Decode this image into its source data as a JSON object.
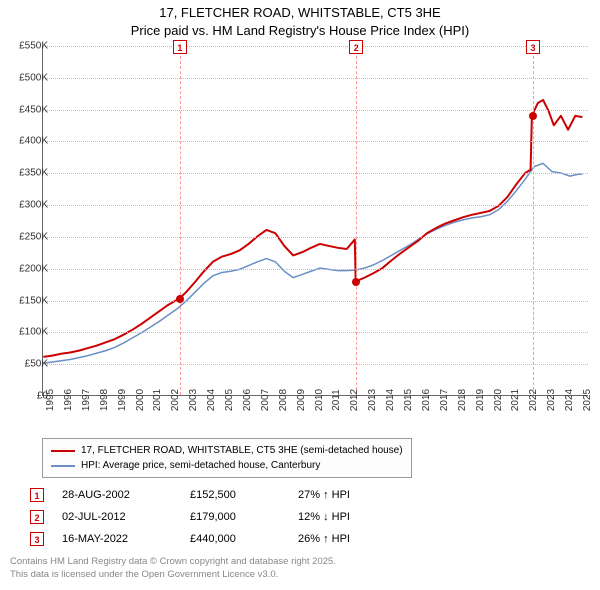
{
  "title": {
    "line1": "17, FLETCHER ROAD, WHITSTABLE, CT5 3HE",
    "line2": "Price paid vs. HM Land Registry's House Price Index (HPI)"
  },
  "chart": {
    "type": "line",
    "background_color": "#ffffff",
    "grid_color": "#bbbbbb",
    "axis_color": "#666666",
    "x": {
      "min": 1995,
      "max": 2025.5,
      "tick_step": 1,
      "labels_every": 1
    },
    "y": {
      "min": 0,
      "max": 550000,
      "tick_step": 50000,
      "labels": [
        "£0",
        "£50K",
        "£100K",
        "£150K",
        "£200K",
        "£250K",
        "£300K",
        "£350K",
        "£400K",
        "£450K",
        "£500K",
        "£550K"
      ]
    },
    "series": [
      {
        "name": "17, FLETCHER ROAD, WHITSTABLE, CT5 3HE (semi-detached house)",
        "color": "#cc0000",
        "line_width": 2,
        "data": [
          [
            1995.0,
            60000
          ],
          [
            1995.5,
            62000
          ],
          [
            1996.0,
            65000
          ],
          [
            1996.5,
            67000
          ],
          [
            1997.0,
            70000
          ],
          [
            1997.5,
            74000
          ],
          [
            1998.0,
            78000
          ],
          [
            1998.5,
            83000
          ],
          [
            1999.0,
            88000
          ],
          [
            1999.5,
            95000
          ],
          [
            2000.0,
            103000
          ],
          [
            2000.5,
            112000
          ],
          [
            2001.0,
            122000
          ],
          [
            2001.5,
            132000
          ],
          [
            2002.0,
            142000
          ],
          [
            2002.65,
            152500
          ],
          [
            2003.0,
            162000
          ],
          [
            2003.5,
            178000
          ],
          [
            2004.0,
            195000
          ],
          [
            2004.5,
            210000
          ],
          [
            2005.0,
            218000
          ],
          [
            2005.5,
            222000
          ],
          [
            2006.0,
            228000
          ],
          [
            2006.5,
            238000
          ],
          [
            2007.0,
            250000
          ],
          [
            2007.5,
            260000
          ],
          [
            2008.0,
            255000
          ],
          [
            2008.5,
            235000
          ],
          [
            2009.0,
            220000
          ],
          [
            2009.5,
            225000
          ],
          [
            2010.0,
            232000
          ],
          [
            2010.5,
            238000
          ],
          [
            2011.0,
            235000
          ],
          [
            2011.5,
            232000
          ],
          [
            2012.0,
            230000
          ],
          [
            2012.45,
            245000
          ],
          [
            2012.5,
            179000
          ],
          [
            2013.0,
            185000
          ],
          [
            2013.5,
            192000
          ],
          [
            2014.0,
            200000
          ],
          [
            2014.5,
            212000
          ],
          [
            2015.0,
            223000
          ],
          [
            2015.5,
            233000
          ],
          [
            2016.0,
            243000
          ],
          [
            2016.5,
            255000
          ],
          [
            2017.0,
            263000
          ],
          [
            2017.5,
            270000
          ],
          [
            2018.0,
            275000
          ],
          [
            2018.5,
            280000
          ],
          [
            2019.0,
            284000
          ],
          [
            2019.5,
            287000
          ],
          [
            2020.0,
            290000
          ],
          [
            2020.5,
            298000
          ],
          [
            2021.0,
            312000
          ],
          [
            2021.5,
            332000
          ],
          [
            2022.0,
            350000
          ],
          [
            2022.3,
            355000
          ],
          [
            2022.37,
            440000
          ],
          [
            2022.7,
            460000
          ],
          [
            2023.0,
            465000
          ],
          [
            2023.3,
            448000
          ],
          [
            2023.6,
            425000
          ],
          [
            2024.0,
            440000
          ],
          [
            2024.4,
            418000
          ],
          [
            2024.8,
            440000
          ],
          [
            2025.2,
            438000
          ]
        ]
      },
      {
        "name": "HPI: Average price, semi-detached house, Canterbury",
        "color": "#6a8fc5",
        "line_width": 1.5,
        "data": [
          [
            1995.0,
            50000
          ],
          [
            1995.5,
            52000
          ],
          [
            1996.0,
            54000
          ],
          [
            1996.5,
            56000
          ],
          [
            1997.0,
            59000
          ],
          [
            1997.5,
            62000
          ],
          [
            1998.0,
            66000
          ],
          [
            1998.5,
            70000
          ],
          [
            1999.0,
            75000
          ],
          [
            1999.5,
            82000
          ],
          [
            2000.0,
            90000
          ],
          [
            2000.5,
            98000
          ],
          [
            2001.0,
            107000
          ],
          [
            2001.5,
            116000
          ],
          [
            2002.0,
            126000
          ],
          [
            2002.5,
            136000
          ],
          [
            2003.0,
            148000
          ],
          [
            2003.5,
            162000
          ],
          [
            2004.0,
            176000
          ],
          [
            2004.5,
            188000
          ],
          [
            2005.0,
            193000
          ],
          [
            2005.5,
            195000
          ],
          [
            2006.0,
            198000
          ],
          [
            2006.5,
            204000
          ],
          [
            2007.0,
            210000
          ],
          [
            2007.5,
            215000
          ],
          [
            2008.0,
            210000
          ],
          [
            2008.5,
            195000
          ],
          [
            2009.0,
            185000
          ],
          [
            2009.5,
            190000
          ],
          [
            2010.0,
            195000
          ],
          [
            2010.5,
            200000
          ],
          [
            2011.0,
            198000
          ],
          [
            2011.5,
            196000
          ],
          [
            2012.0,
            196000
          ],
          [
            2012.5,
            197000
          ],
          [
            2013.0,
            200000
          ],
          [
            2013.5,
            205000
          ],
          [
            2014.0,
            212000
          ],
          [
            2014.5,
            220000
          ],
          [
            2015.0,
            228000
          ],
          [
            2015.5,
            236000
          ],
          [
            2016.0,
            245000
          ],
          [
            2016.5,
            254000
          ],
          [
            2017.0,
            261000
          ],
          [
            2017.5,
            267000
          ],
          [
            2018.0,
            272000
          ],
          [
            2018.5,
            276000
          ],
          [
            2019.0,
            279000
          ],
          [
            2019.5,
            281000
          ],
          [
            2020.0,
            284000
          ],
          [
            2020.5,
            292000
          ],
          [
            2021.0,
            305000
          ],
          [
            2021.5,
            322000
          ],
          [
            2022.0,
            340000
          ],
          [
            2022.5,
            360000
          ],
          [
            2023.0,
            365000
          ],
          [
            2023.5,
            352000
          ],
          [
            2024.0,
            350000
          ],
          [
            2024.5,
            345000
          ],
          [
            2025.0,
            348000
          ],
          [
            2025.2,
            348000
          ]
        ]
      }
    ],
    "markers": [
      {
        "n": "1",
        "x": 2002.65,
        "y": 152500,
        "color": "#ff9999"
      },
      {
        "n": "2",
        "x": 2012.5,
        "y": 179000,
        "color": "#ff9999"
      },
      {
        "n": "3",
        "x": 2022.37,
        "y": 440000,
        "color": "#ff9999"
      }
    ]
  },
  "sales": [
    {
      "n": "1",
      "date": "28-AUG-2002",
      "price": "£152,500",
      "pct": "27% ↑ HPI"
    },
    {
      "n": "2",
      "date": "02-JUL-2012",
      "price": "£179,000",
      "pct": "12% ↓ HPI"
    },
    {
      "n": "3",
      "date": "16-MAY-2022",
      "price": "£440,000",
      "pct": "26% ↑ HPI"
    }
  ],
  "footer": {
    "line1": "Contains HM Land Registry data © Crown copyright and database right 2025.",
    "line2": "This data is licensed under the Open Government Licence v3.0."
  },
  "colors": {
    "marker_border": "#cc0000",
    "sale_dot": "#cc0000",
    "footer_text": "#888888"
  }
}
